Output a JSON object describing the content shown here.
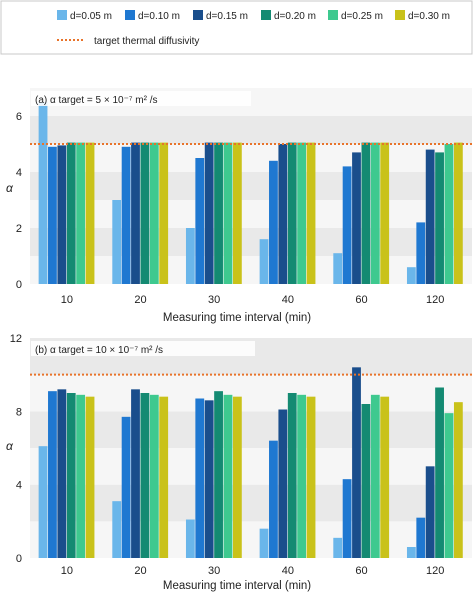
{
  "legend": {
    "items": [
      {
        "label": "d=0.05 m",
        "color": "#6ab6ea"
      },
      {
        "label": "d=0.10 m",
        "color": "#1f78d1"
      },
      {
        "label": "d=0.15 m",
        "color": "#1a4e8c"
      },
      {
        "label": "d=0.20 m",
        "color": "#148a72"
      },
      {
        "label": "d=0.25 m",
        "color": "#3ec98f"
      },
      {
        "label": "d=0.30 m",
        "color": "#c9c21a"
      }
    ],
    "target_label": "target thermal diffusivity",
    "target_color": "#e8732a"
  },
  "chart_data": [
    {
      "type": "bar",
      "panel_label": "(a)  α  target = 5 × 10⁻⁷ m² /s",
      "ylabel": "α",
      "xlabel": "Measuring time interval (min)",
      "categories": [
        "10",
        "20",
        "30",
        "40",
        "60",
        "120"
      ],
      "ylim": [
        0,
        7
      ],
      "yticks": [
        0,
        2,
        4,
        6
      ],
      "target": 5.0,
      "series": [
        {
          "name": "d=0.05 m",
          "values": [
            6.5,
            3.0,
            2.0,
            1.6,
            1.1,
            0.6
          ]
        },
        {
          "name": "d=0.10 m",
          "values": [
            4.9,
            4.9,
            4.5,
            4.4,
            4.2,
            2.2
          ]
        },
        {
          "name": "d=0.15 m",
          "values": [
            4.95,
            5.05,
            5.05,
            5.0,
            4.7,
            4.8
          ]
        },
        {
          "name": "d=0.20 m",
          "values": [
            5.05,
            5.05,
            5.05,
            5.05,
            5.05,
            4.7
          ]
        },
        {
          "name": "d=0.25 m",
          "values": [
            5.05,
            5.05,
            5.05,
            5.05,
            5.05,
            5.0
          ]
        },
        {
          "name": "d=0.30 m",
          "values": [
            5.05,
            5.05,
            5.05,
            5.05,
            5.05,
            5.05
          ]
        }
      ]
    },
    {
      "type": "bar",
      "panel_label": "(b)  α  target = 10 × 10⁻⁷ m² /s",
      "ylabel": "α",
      "xlabel": "Measuring time interval (min)",
      "categories": [
        "10",
        "20",
        "30",
        "40",
        "60",
        "120"
      ],
      "ylim": [
        0,
        12
      ],
      "yticks": [
        0,
        4,
        8,
        12
      ],
      "target": 10.0,
      "series": [
        {
          "name": "d=0.05 m",
          "values": [
            6.1,
            3.1,
            2.1,
            1.6,
            1.1,
            0.6
          ]
        },
        {
          "name": "d=0.10 m",
          "values": [
            9.1,
            7.7,
            8.7,
            6.4,
            4.3,
            2.2
          ]
        },
        {
          "name": "d=0.15 m",
          "values": [
            9.2,
            9.2,
            8.6,
            8.1,
            10.4,
            5.0
          ]
        },
        {
          "name": "d=0.20 m",
          "values": [
            9.0,
            9.0,
            9.1,
            9.0,
            8.4,
            9.3
          ]
        },
        {
          "name": "d=0.25 m",
          "values": [
            8.9,
            8.9,
            8.9,
            8.9,
            8.9,
            7.9
          ]
        },
        {
          "name": "d=0.30 m",
          "values": [
            8.8,
            8.8,
            8.8,
            8.8,
            8.8,
            8.5
          ]
        }
      ]
    }
  ]
}
